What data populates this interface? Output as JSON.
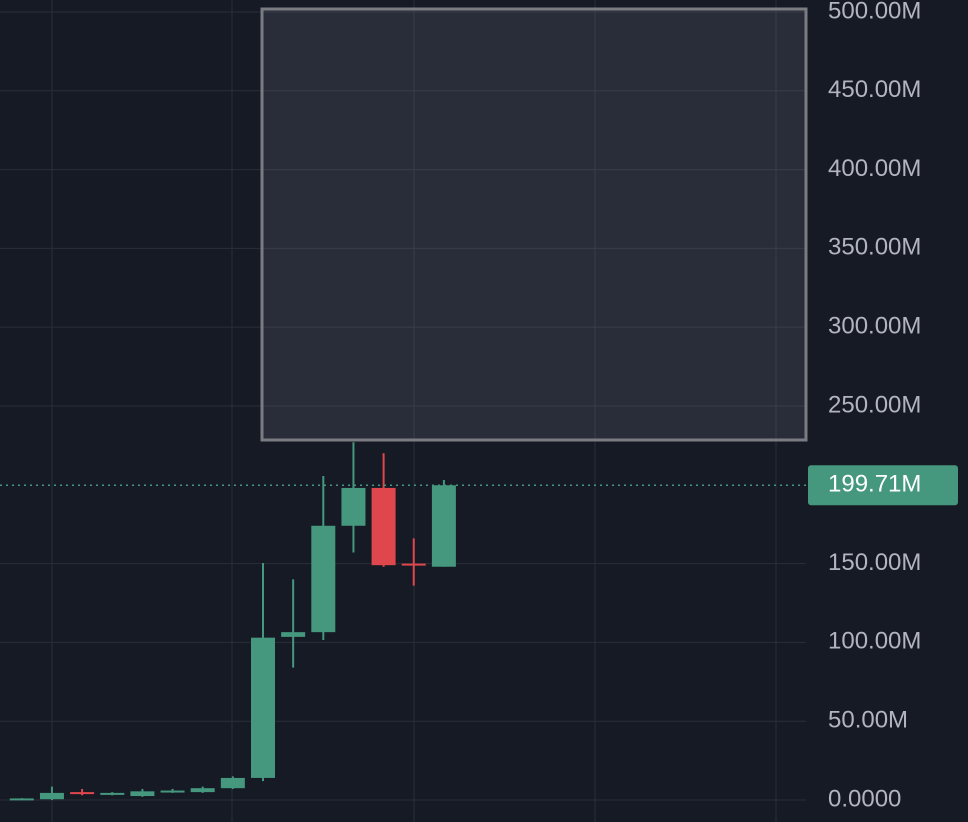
{
  "chart_data": {
    "type": "candlestick",
    "categories": [
      null,
      null,
      null,
      null,
      null,
      null,
      null,
      null,
      null,
      null,
      null,
      null,
      null,
      null,
      null
    ],
    "series": [
      {
        "open": [
          500000,
          500000,
          5000000,
          3500000,
          2500000,
          5000000,
          5000000,
          7500000,
          14000000,
          103500000,
          106500000,
          174000000,
          198000000,
          150000000,
          148000000
        ],
        "high": [
          1200000,
          8500000,
          7000000,
          5000000,
          7000000,
          7000000,
          8500000,
          15000000,
          150400000,
          140000000,
          205600000,
          227000000,
          220000000,
          166000000,
          203000000
        ],
        "low": [
          300000,
          0,
          3000000,
          3000000,
          2000000,
          4500000,
          4500000,
          7000000,
          12000000,
          84000000,
          101500000,
          157000000,
          148000000,
          136000000,
          148000000
        ],
        "close": [
          1000000,
          4500000,
          4000000,
          4500000,
          5500000,
          6000000,
          7500000,
          14000000,
          103000000,
          106500000,
          174000000,
          198000000,
          149000000,
          149000000,
          199710000
        ]
      }
    ],
    "up_color": "#45977d",
    "down_color": "#e0474c",
    "ylim": [
      -13960000,
      507600000
    ],
    "yticks": [
      {
        "value": 0,
        "label": "0.0000"
      },
      {
        "value": 50000000,
        "label": "50.00M"
      },
      {
        "value": 100000000,
        "label": "100.00M"
      },
      {
        "value": 150000000,
        "label": "150.00M"
      },
      {
        "value": 250000000,
        "label": "250.00M"
      },
      {
        "value": 300000000,
        "label": "300.00M"
      },
      {
        "value": 350000000,
        "label": "350.00M"
      },
      {
        "value": 400000000,
        "label": "400.00M"
      },
      {
        "value": 450000000,
        "label": "450.00M"
      },
      {
        "value": 500000000,
        "label": "500.00M"
      }
    ],
    "last_price": {
      "value": 199710000,
      "label": "199.71M"
    },
    "grid": true
  }
}
